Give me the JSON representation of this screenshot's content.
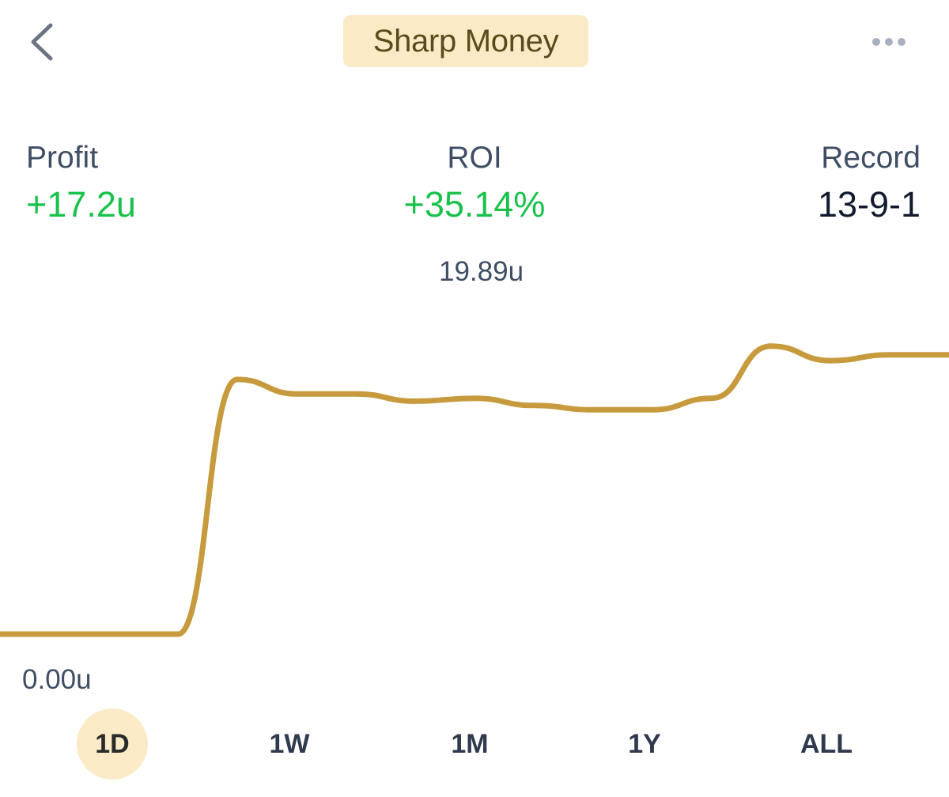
{
  "nav": {
    "title": "Sharp Money",
    "back_icon": "chevron-left-icon",
    "more_icon": "ellipsis-icon"
  },
  "stats": {
    "profit": {
      "label": "Profit",
      "value": "+17.2u"
    },
    "roi": {
      "label": "ROI",
      "value": "+35.14%"
    },
    "record": {
      "label": "Record",
      "value": "13-9-1"
    }
  },
  "chart_data": {
    "type": "line",
    "title": "",
    "xlabel": "",
    "ylabel": "",
    "peak_label": "19.89u",
    "base_label": "0.00u",
    "ylim": [
      0,
      19.89
    ],
    "x": [
      0,
      1,
      2,
      3,
      4,
      5,
      6,
      7,
      8,
      9,
      10,
      11,
      12,
      13,
      14,
      15,
      16
    ],
    "values": [
      0,
      0,
      0,
      0,
      17.6,
      16.6,
      16.6,
      16.1,
      16.3,
      15.8,
      15.5,
      15.5,
      16.3,
      19.9,
      18.9,
      19.3,
      19.3
    ],
    "color": "#c79a3e"
  },
  "tabs": [
    {
      "label": "1D",
      "active": true
    },
    {
      "label": "1W",
      "active": false
    },
    {
      "label": "1M",
      "active": false
    },
    {
      "label": "1Y",
      "active": false
    },
    {
      "label": "ALL",
      "active": false
    }
  ],
  "colors": {
    "accent": "#faebc6",
    "positive": "#18c24a",
    "line": "#c79a3e"
  }
}
